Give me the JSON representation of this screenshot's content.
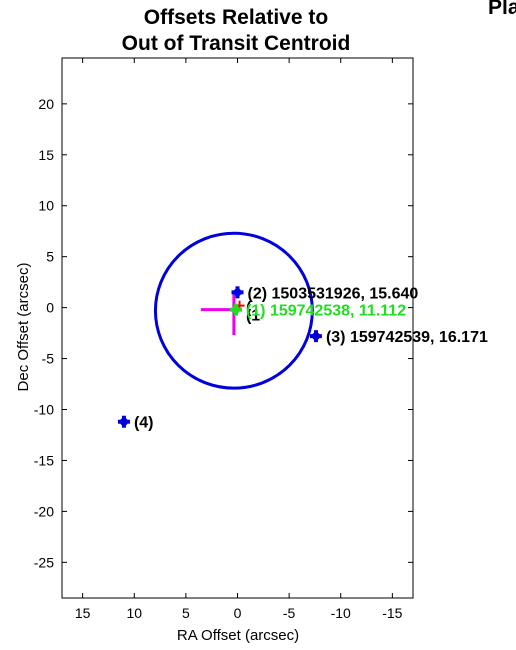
{
  "chart_data": {
    "type": "scatter",
    "title_lines": [
      "Offsets Relative to",
      "Out of Transit Centroid"
    ],
    "corner_title": "Pla",
    "xlabel": "RA Offset (arcsec)",
    "ylabel": "Dec Offset (arcsec)",
    "xlim": [
      17,
      -17
    ],
    "ylim": [
      -28.5,
      24.5
    ],
    "x_reversed": true,
    "xticks": [
      15,
      10,
      5,
      0,
      -5,
      -10,
      -15
    ],
    "xtick_labels": [
      "15",
      "10",
      "5",
      "0",
      "-5",
      "-10",
      "-15"
    ],
    "yticks": [
      20,
      15,
      10,
      5,
      0,
      -5,
      -10,
      -15,
      -20,
      -25
    ],
    "ytick_labels": [
      "20",
      "15",
      "10",
      "5",
      "0",
      "-5",
      "-10",
      "-15",
      "-20",
      "-25"
    ],
    "grid": false,
    "stars": [
      {
        "x": 0.15,
        "y": -0.2,
        "label": "(1) 159742538, 11.112",
        "color": "#22dd22"
      },
      {
        "x": 0.0,
        "y": 1.5,
        "label": "(2) 1503531926, 15.640",
        "color": "#0000dd"
      },
      {
        "x": -7.6,
        "y": -2.8,
        "label": "(3) 159742539, 16.171",
        "color": "#0000dd"
      },
      {
        "x": 11.0,
        "y": -11.2,
        "label": "(4)",
        "color": "#0000dd"
      }
    ],
    "circle": {
      "x": 0.35,
      "y": -0.3,
      "r": 7.6,
      "color": "#0000dd"
    },
    "centroid_cross": {
      "x": 0.35,
      "y": -0.2,
      "dx": [
        3.2,
        -0.2
      ],
      "dy": [
        -2.5,
        1.8
      ],
      "color": "#ee00ee"
    },
    "red_marker": {
      "x": -0.2,
      "y": 0.2,
      "color": "#ff0000"
    },
    "overlap_label_text": "(1",
    "overlap_label_extra": "(",
    "colors": {
      "axis": "#000000",
      "star": "#0000dd",
      "target": "#22dd22",
      "centroid": "#ee00ee",
      "difference": "#ff0000"
    }
  }
}
